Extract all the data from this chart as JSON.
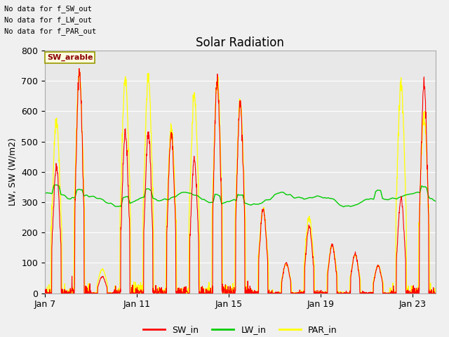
{
  "title": "Solar Radiation",
  "ylabel": "LW, SW (W/m2)",
  "xlabel": "",
  "ylim": [
    0,
    800
  ],
  "xlim": [
    0,
    17
  ],
  "xtick_positions": [
    0,
    4,
    8,
    12,
    16
  ],
  "xtick_labels": [
    "Jan 7",
    "Jan 11",
    "Jan 15",
    "Jan 19",
    "Jan 23"
  ],
  "ytick_positions": [
    0,
    100,
    200,
    300,
    400,
    500,
    600,
    700,
    800
  ],
  "fig_bg_color": "#f0f0f0",
  "plot_bg_color": "#e8e8e8",
  "sw_color": "#ff0000",
  "lw_color": "#00cc00",
  "par_color": "#ffff00",
  "title_fontsize": 12,
  "annotation_text": "No data for f_SW_out\nNo data for f_LW_out\nNo data for f_PAR_out",
  "legend_label_sw": "SW_in",
  "legend_label_lw": "LW_in",
  "legend_label_par": "PAR_in",
  "n_days": 17,
  "lw_mean": 310,
  "lw_std": 12,
  "peaks_sw": [
    420,
    730,
    55,
    525,
    525,
    520,
    440,
    695,
    630,
    280,
    100,
    220,
    160,
    130,
    90,
    310,
    690
  ],
  "peaks_par": [
    570,
    730,
    80,
    710,
    705,
    540,
    650,
    695,
    630,
    280,
    95,
    250,
    160,
    125,
    90,
    695,
    580
  ]
}
